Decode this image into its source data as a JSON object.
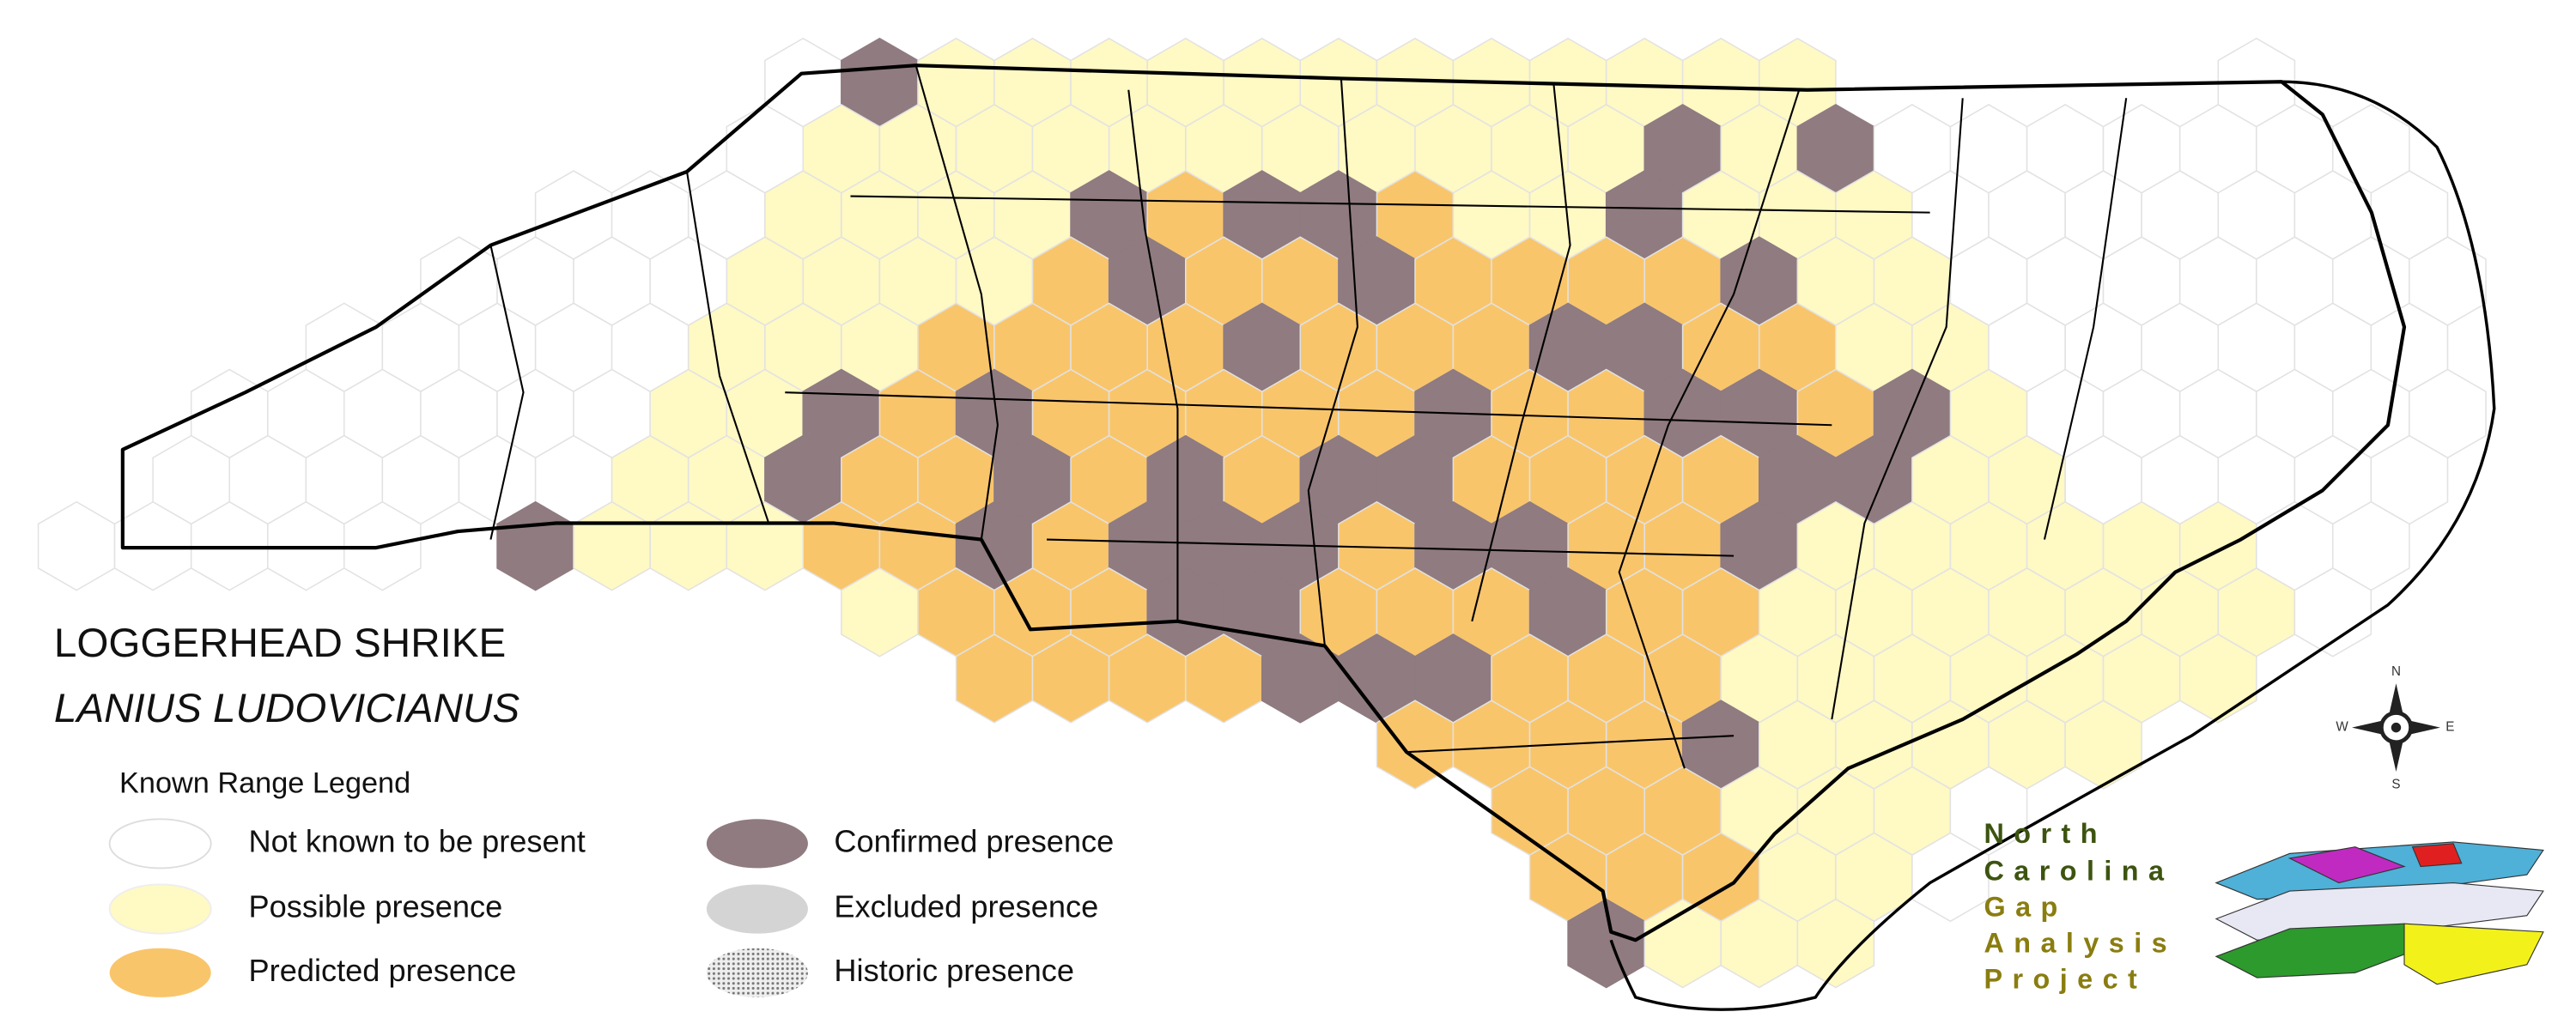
{
  "title": "LOGGERHEAD SHRIKE",
  "subtitle": "LANIUS LUDOVICIANUS",
  "legend": {
    "title": "Known Range Legend",
    "items": [
      "Not known to be present",
      "Possible presence",
      "Predicted presence",
      "Confirmed presence",
      "Excluded presence",
      "Historic presence"
    ]
  },
  "compass": {
    "n": "N",
    "w": "W",
    "e": "E",
    "s": "S"
  },
  "logo": {
    "lines": [
      "North",
      "Carolina",
      "Gap",
      "Analysis",
      "Project"
    ]
  }
}
